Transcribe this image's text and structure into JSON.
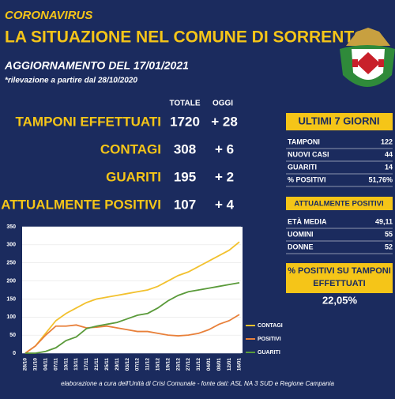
{
  "header": {
    "kicker": "CORONAVIRUS",
    "title": "LA SITUAZIONE NEL COMUNE DI SORRENTO",
    "update": "AGGIORNAMENTO DEL 17/01/2021",
    "note": "*rilevazione a partire dal 28/10/2020"
  },
  "totals": {
    "columns": [
      "TOTALE",
      "OGGI"
    ],
    "rows": [
      [
        "TAMPONI EFFETTUATI",
        "1720",
        "+ 28"
      ],
      [
        "CONTAGI",
        "308",
        "+ 6"
      ],
      [
        "GUARITI",
        "195",
        "+ 2"
      ],
      [
        "ATTUALMENTE POSITIVI",
        "107",
        "+ 4"
      ]
    ]
  },
  "last7": {
    "title": "ULTIMI 7 GIORNI",
    "rows": [
      [
        "TAMPONI",
        "122"
      ],
      [
        "NUOVI CASI",
        "44"
      ],
      [
        "GUARITI",
        "14"
      ],
      [
        "% POSITIVI",
        "51,76%"
      ]
    ]
  },
  "positives": {
    "title": "ATTUALMENTE POSITIVI",
    "rows": [
      [
        "ETÀ MEDIA",
        "49,11"
      ],
      [
        "UOMINI",
        "55"
      ],
      [
        "DONNE",
        "52"
      ]
    ]
  },
  "ratio": {
    "title": "% POSITIVI SU TAMPONI EFFETTUATI",
    "value": "22,05%"
  },
  "footer": "elaborazione a cura dell'Unità di Crisi Comunale - fonte dati: ASL NA 3 SUD e Regione Campania",
  "chart_data": {
    "type": "line",
    "categories": [
      "28/10",
      "31/10",
      "04/11",
      "07/11",
      "10/11",
      "13/11",
      "17/11",
      "21/11",
      "25/11",
      "29/11",
      "03/12",
      "07/12",
      "11/12",
      "15/12",
      "19/12",
      "23/12",
      "27/12",
      "31/12",
      "04/01",
      "08/01",
      "12/01",
      "16/01"
    ],
    "series": [
      {
        "name": "CONTAGI",
        "color": "#f2c12e",
        "values": [
          0,
          20,
          55,
          90,
          110,
          125,
          140,
          150,
          155,
          160,
          165,
          170,
          175,
          185,
          200,
          215,
          225,
          240,
          255,
          270,
          285,
          308
        ]
      },
      {
        "name": "POSITIVI",
        "color": "#e8803a",
        "values": [
          0,
          20,
          50,
          75,
          75,
          78,
          70,
          72,
          75,
          70,
          65,
          60,
          60,
          55,
          50,
          48,
          50,
          55,
          65,
          80,
          90,
          107
        ]
      },
      {
        "name": "GUARITI",
        "color": "#5a9a3a",
        "values": [
          0,
          0,
          5,
          15,
          35,
          45,
          68,
          75,
          80,
          85,
          95,
          105,
          110,
          125,
          145,
          160,
          170,
          175,
          180,
          185,
          190,
          195
        ]
      }
    ],
    "ylim": [
      0,
      350
    ],
    "yticks": [
      0,
      50,
      100,
      150,
      200,
      250,
      300,
      350
    ]
  }
}
